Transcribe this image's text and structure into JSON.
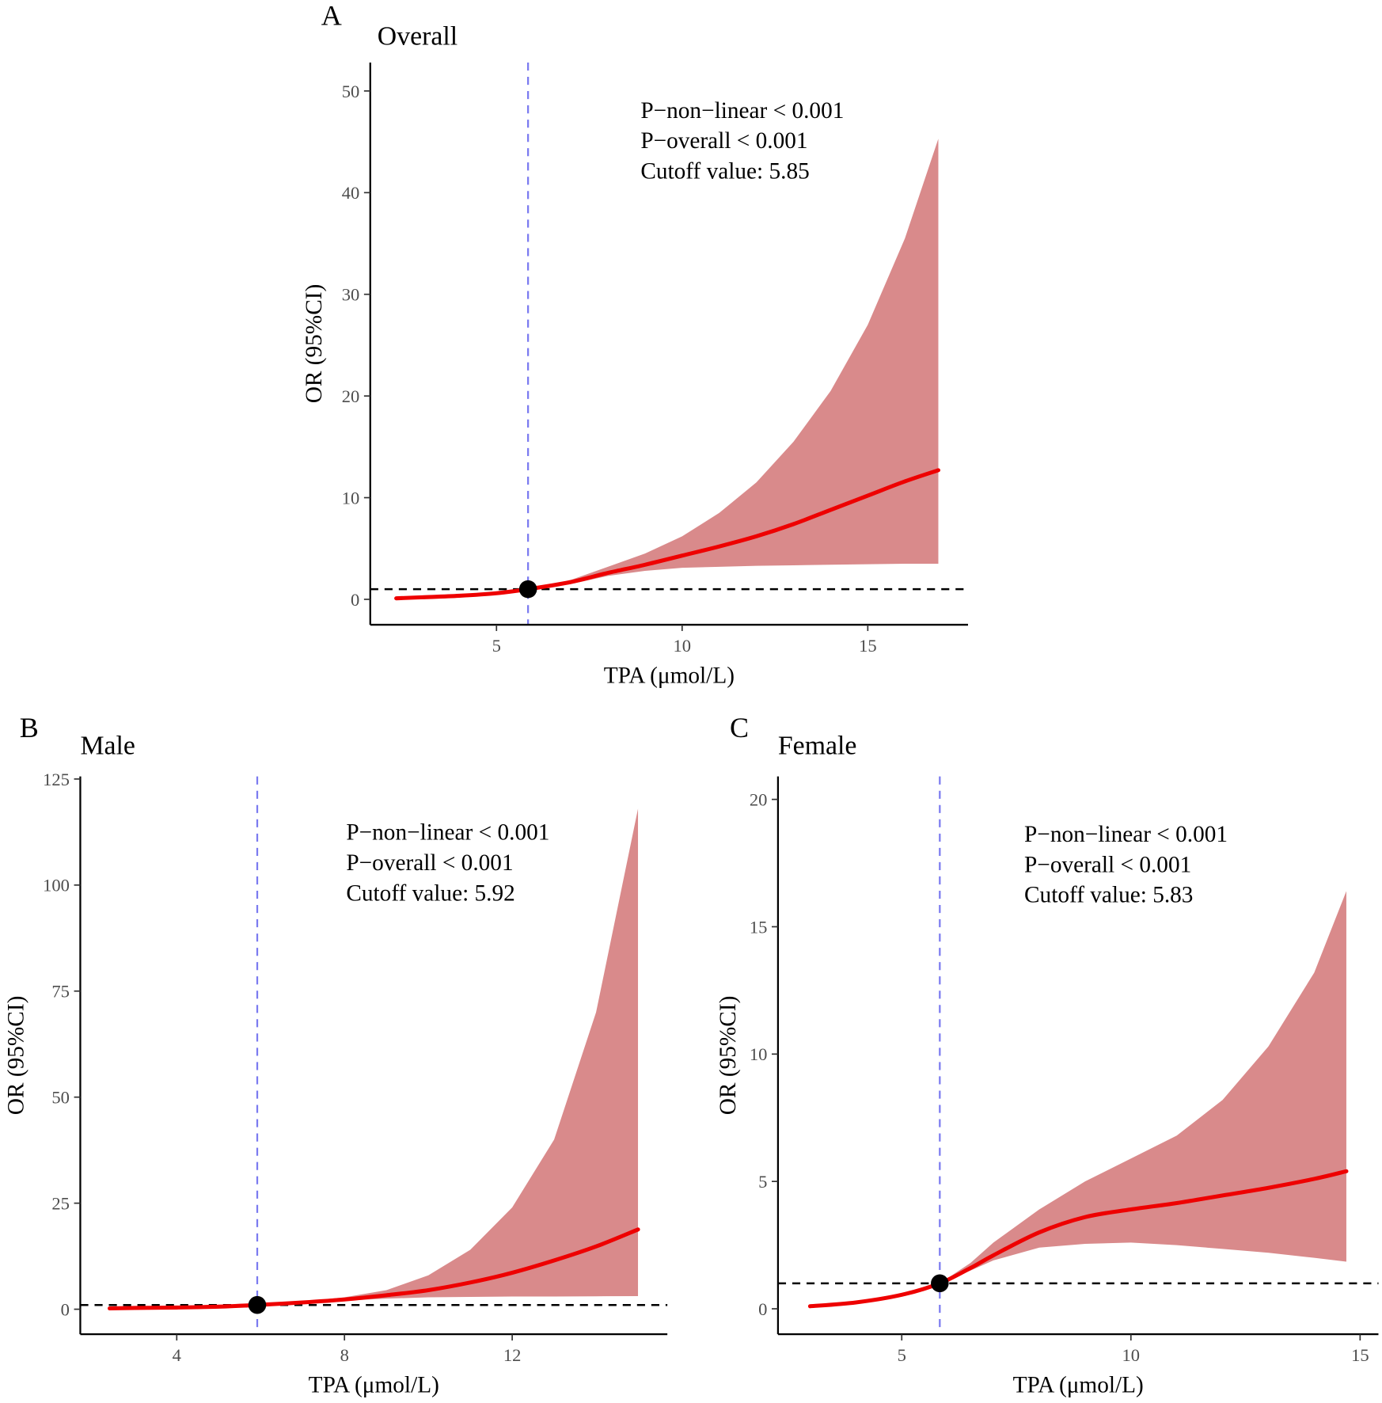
{
  "colors": {
    "ribbon": "#d98a8b",
    "curve": "#ee0000",
    "cutoff_line": "#7b7bf0",
    "reference_line": "#000000",
    "point": "#000000"
  },
  "chart_data": [
    {
      "type": "line",
      "panel_letter": "A",
      "title": "Overall",
      "xlabel": "TPA (μmol/L)",
      "ylabel": "OR (95%CI)",
      "xlim": [
        1.6,
        17.7
      ],
      "ylim": [
        -2.5,
        52.8
      ],
      "xticks": [
        5,
        10,
        15
      ],
      "yticks": [
        0,
        10,
        20,
        30,
        40,
        50
      ],
      "reference_y": 1,
      "cutoff": 5.85,
      "annotations": [
        "P−non−linear < 0.001",
        "P−overall < 0.001",
        "Cutoff value: 5.85"
      ],
      "curve": {
        "x": [
          2.3,
          3,
          4,
          5,
          5.85,
          7,
          8,
          9,
          10,
          11,
          12,
          13,
          14,
          15,
          16,
          16.9
        ],
        "y": [
          0.1,
          0.2,
          0.35,
          0.6,
          1,
          1.7,
          2.6,
          3.4,
          4.3,
          5.2,
          6.2,
          7.4,
          8.8,
          10.2,
          11.6,
          12.7
        ]
      },
      "ci": {
        "x": [
          5.85,
          7,
          8,
          9,
          10,
          11,
          12,
          13,
          14,
          15,
          16,
          16.9
        ],
        "upper": [
          1,
          1.9,
          3.2,
          4.5,
          6.2,
          8.5,
          11.5,
          15.5,
          20.5,
          27,
          35.5,
          45.3
        ],
        "lower": [
          1,
          1.5,
          2.3,
          2.8,
          3.1,
          3.2,
          3.3,
          3.35,
          3.4,
          3.45,
          3.5,
          3.5
        ]
      }
    },
    {
      "type": "line",
      "panel_letter": "B",
      "title": "Male",
      "xlabel": "TPA (μmol/L)",
      "ylabel": "OR (95%CI)",
      "xlim": [
        1.7,
        15.7
      ],
      "ylim": [
        -5.9,
        125.6
      ],
      "xticks": [
        4,
        8,
        12
      ],
      "yticks": [
        0,
        25,
        50,
        75,
        100,
        125
      ],
      "reference_y": 1,
      "cutoff": 5.92,
      "annotations": [
        "P−non−linear < 0.001",
        "P−overall < 0.001",
        "Cutoff value: 5.92"
      ],
      "curve": {
        "x": [
          2.4,
          3,
          4,
          5,
          5.92,
          7,
          8,
          9,
          10,
          11,
          12,
          13,
          14,
          15
        ],
        "y": [
          0.2,
          0.3,
          0.4,
          0.6,
          1,
          1.6,
          2.3,
          3.3,
          4.5,
          6.3,
          8.6,
          11.5,
          14.8,
          18.8
        ]
      },
      "ci": {
        "x": [
          5.92,
          7,
          8,
          9,
          10,
          11,
          12,
          13,
          14,
          15
        ],
        "upper": [
          1,
          1.8,
          2.8,
          4.5,
          8,
          14,
          24,
          40,
          70,
          118
        ],
        "lower": [
          1,
          1.5,
          2,
          2.5,
          2.8,
          2.9,
          3,
          3,
          3.05,
          3.1
        ]
      }
    },
    {
      "type": "line",
      "panel_letter": "C",
      "title": "Female",
      "xlabel": "TPA (μmol/L)",
      "ylabel": "OR (95%CI)",
      "xlim": [
        2.3,
        15.4
      ],
      "ylim": [
        -1,
        20.9
      ],
      "xticks": [
        5,
        10,
        15
      ],
      "yticks": [
        0,
        5,
        10,
        15,
        20
      ],
      "reference_y": 1,
      "cutoff": 5.83,
      "annotations": [
        "P−non−linear < 0.001",
        "P−overall < 0.001",
        "Cutoff value: 5.83"
      ],
      "curve": {
        "x": [
          3,
          4,
          5,
          5.83,
          6.5,
          7,
          8,
          9,
          10,
          11,
          12,
          13,
          14,
          14.7
        ],
        "y": [
          0.1,
          0.25,
          0.55,
          1,
          1.6,
          2.1,
          3.0,
          3.6,
          3.9,
          4.15,
          4.45,
          4.75,
          5.1,
          5.4
        ]
      },
      "ci": {
        "x": [
          5.83,
          6.5,
          7,
          8,
          9,
          10,
          11,
          12,
          13,
          14,
          14.7
        ],
        "upper": [
          1,
          1.8,
          2.6,
          3.9,
          5.0,
          5.9,
          6.8,
          8.2,
          10.3,
          13.2,
          16.4
        ],
        "lower": [
          1,
          1.5,
          1.9,
          2.4,
          2.55,
          2.6,
          2.5,
          2.35,
          2.2,
          2.0,
          1.85
        ]
      }
    }
  ]
}
